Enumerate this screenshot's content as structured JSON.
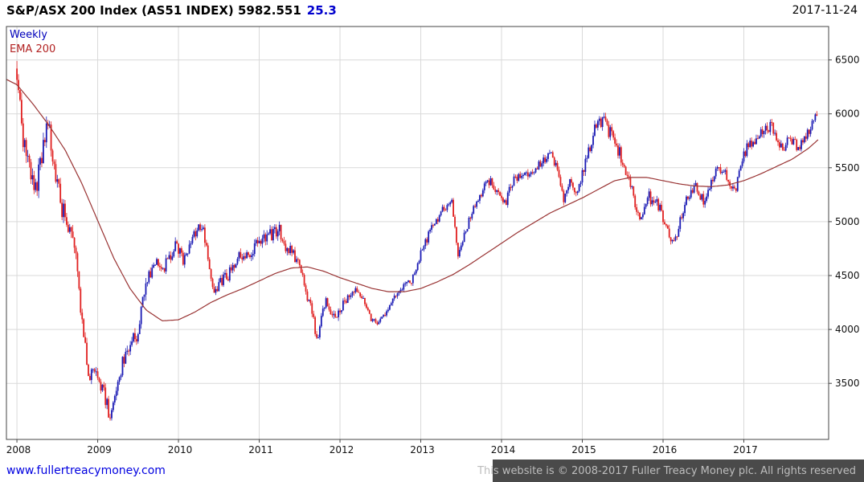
{
  "header": {
    "title": "S&P/ASX 200 Index (AS51 INDEX) 5982.551",
    "change": "25.3",
    "date": "2017-11-24"
  },
  "legend": {
    "timeframe": "Weekly",
    "overlay": "EMA 200"
  },
  "footer": {
    "link": "www.fullertreacymoney.com",
    "copyright": "This website is © 2008-2017 Fuller Treacy Money plc. All rights reserved"
  },
  "chart_data": {
    "type": "candlestick",
    "title": "S&P/ASX 200 Index (AS51 INDEX)",
    "last_price": 5982.551,
    "change": 25.3,
    "interval": "Weekly",
    "overlay": "EMA 200",
    "grid": true,
    "legend_position": "top-left",
    "x_ticks": [
      "2008",
      "2009",
      "2010",
      "2011",
      "2012",
      "2013",
      "2014",
      "2015",
      "2016",
      "2017"
    ],
    "y_ticks": [
      6500,
      6000,
      5500,
      5000,
      4500,
      4000,
      3500
    ],
    "x_range": [
      2007.87,
      2018.05
    ],
    "y_range": [
      2980,
      6810
    ],
    "colors": {
      "up": "#1a1ab4",
      "down": "#e02020",
      "ema": "#993333",
      "grid": "#d9d9d9",
      "axis": "#444444"
    },
    "price_path": [
      [
        2008.0,
        6420
      ],
      [
        2008.04,
        6050
      ],
      [
        2008.08,
        5750
      ],
      [
        2008.15,
        5550
      ],
      [
        2008.22,
        5250
      ],
      [
        2008.3,
        5570
      ],
      [
        2008.38,
        5900
      ],
      [
        2008.46,
        5550
      ],
      [
        2008.55,
        5150
      ],
      [
        2008.63,
        4980
      ],
      [
        2008.7,
        4900
      ],
      [
        2008.76,
        4500
      ],
      [
        2008.8,
        4100
      ],
      [
        2008.85,
        3800
      ],
      [
        2008.9,
        3550
      ],
      [
        2008.96,
        3680
      ],
      [
        2009.02,
        3520
      ],
      [
        2009.08,
        3400
      ],
      [
        2009.16,
        3160
      ],
      [
        2009.24,
        3500
      ],
      [
        2009.33,
        3750
      ],
      [
        2009.42,
        3880
      ],
      [
        2009.5,
        3950
      ],
      [
        2009.58,
        4350
      ],
      [
        2009.66,
        4550
      ],
      [
        2009.74,
        4650
      ],
      [
        2009.82,
        4580
      ],
      [
        2009.9,
        4700
      ],
      [
        2009.98,
        4780
      ],
      [
        2010.06,
        4620
      ],
      [
        2010.14,
        4800
      ],
      [
        2010.24,
        4950
      ],
      [
        2010.3,
        4980
      ],
      [
        2010.38,
        4550
      ],
      [
        2010.46,
        4350
      ],
      [
        2010.54,
        4450
      ],
      [
        2010.62,
        4500
      ],
      [
        2010.72,
        4680
      ],
      [
        2010.8,
        4700
      ],
      [
        2010.88,
        4650
      ],
      [
        2010.96,
        4780
      ],
      [
        2011.05,
        4820
      ],
      [
        2011.15,
        4880
      ],
      [
        2011.25,
        4920
      ],
      [
        2011.33,
        4750
      ],
      [
        2011.42,
        4700
      ],
      [
        2011.5,
        4600
      ],
      [
        2011.58,
        4350
      ],
      [
        2011.65,
        4150
      ],
      [
        2011.72,
        3900
      ],
      [
        2011.78,
        4200
      ],
      [
        2011.84,
        4280
      ],
      [
        2011.9,
        4150
      ],
      [
        2011.96,
        4120
      ],
      [
        2012.04,
        4230
      ],
      [
        2012.12,
        4280
      ],
      [
        2012.22,
        4350
      ],
      [
        2012.3,
        4280
      ],
      [
        2012.4,
        4080
      ],
      [
        2012.46,
        4030
      ],
      [
        2012.54,
        4120
      ],
      [
        2012.62,
        4250
      ],
      [
        2012.72,
        4360
      ],
      [
        2012.8,
        4400
      ],
      [
        2012.9,
        4480
      ],
      [
        2012.98,
        4650
      ],
      [
        2013.06,
        4820
      ],
      [
        2013.14,
        4950
      ],
      [
        2013.24,
        5080
      ],
      [
        2013.32,
        5150
      ],
      [
        2013.38,
        5210
      ],
      [
        2013.46,
        4700
      ],
      [
        2013.54,
        4880
      ],
      [
        2013.62,
        5050
      ],
      [
        2013.72,
        5220
      ],
      [
        2013.82,
        5380
      ],
      [
        2013.9,
        5350
      ],
      [
        2013.98,
        5250
      ],
      [
        2014.06,
        5200
      ],
      [
        2014.14,
        5380
      ],
      [
        2014.24,
        5450
      ],
      [
        2014.34,
        5450
      ],
      [
        2014.44,
        5500
      ],
      [
        2014.54,
        5580
      ],
      [
        2014.62,
        5650
      ],
      [
        2014.7,
        5450
      ],
      [
        2014.76,
        5200
      ],
      [
        2014.84,
        5400
      ],
      [
        2014.9,
        5250
      ],
      [
        2014.98,
        5400
      ],
      [
        2015.06,
        5600
      ],
      [
        2015.14,
        5850
      ],
      [
        2015.24,
        5950
      ],
      [
        2015.3,
        5900
      ],
      [
        2015.38,
        5750
      ],
      [
        2015.46,
        5650
      ],
      [
        2015.52,
        5500
      ],
      [
        2015.6,
        5350
      ],
      [
        2015.68,
        5050
      ],
      [
        2015.74,
        5100
      ],
      [
        2015.8,
        5250
      ],
      [
        2015.86,
        5200
      ],
      [
        2015.94,
        5150
      ],
      [
        2016.02,
        5000
      ],
      [
        2016.08,
        4850
      ],
      [
        2016.13,
        4760
      ],
      [
        2016.2,
        5000
      ],
      [
        2016.3,
        5200
      ],
      [
        2016.4,
        5350
      ],
      [
        2016.46,
        5250
      ],
      [
        2016.52,
        5150
      ],
      [
        2016.6,
        5400
      ],
      [
        2016.68,
        5500
      ],
      [
        2016.76,
        5450
      ],
      [
        2016.84,
        5350
      ],
      [
        2016.9,
        5300
      ],
      [
        2016.98,
        5600
      ],
      [
        2017.06,
        5720
      ],
      [
        2017.16,
        5780
      ],
      [
        2017.26,
        5850
      ],
      [
        2017.34,
        5900
      ],
      [
        2017.42,
        5750
      ],
      [
        2017.5,
        5700
      ],
      [
        2017.58,
        5760
      ],
      [
        2017.66,
        5700
      ],
      [
        2017.74,
        5720
      ],
      [
        2017.8,
        5850
      ],
      [
        2017.86,
        5950
      ],
      [
        2017.9,
        5983
      ]
    ],
    "ema_path": [
      [
        2007.87,
        6320
      ],
      [
        2008.0,
        6270
      ],
      [
        2008.2,
        6090
      ],
      [
        2008.4,
        5890
      ],
      [
        2008.6,
        5660
      ],
      [
        2008.8,
        5360
      ],
      [
        2009.0,
        5010
      ],
      [
        2009.2,
        4660
      ],
      [
        2009.4,
        4380
      ],
      [
        2009.6,
        4180
      ],
      [
        2009.8,
        4080
      ],
      [
        2010.0,
        4090
      ],
      [
        2010.2,
        4160
      ],
      [
        2010.4,
        4250
      ],
      [
        2010.6,
        4320
      ],
      [
        2010.8,
        4380
      ],
      [
        2011.0,
        4450
      ],
      [
        2011.2,
        4520
      ],
      [
        2011.4,
        4570
      ],
      [
        2011.6,
        4580
      ],
      [
        2011.8,
        4540
      ],
      [
        2012.0,
        4480
      ],
      [
        2012.2,
        4430
      ],
      [
        2012.4,
        4380
      ],
      [
        2012.6,
        4350
      ],
      [
        2012.8,
        4350
      ],
      [
        2013.0,
        4380
      ],
      [
        2013.2,
        4440
      ],
      [
        2013.4,
        4510
      ],
      [
        2013.6,
        4600
      ],
      [
        2013.8,
        4700
      ],
      [
        2014.0,
        4800
      ],
      [
        2014.2,
        4900
      ],
      [
        2014.4,
        4990
      ],
      [
        2014.6,
        5080
      ],
      [
        2014.8,
        5150
      ],
      [
        2015.0,
        5220
      ],
      [
        2015.2,
        5300
      ],
      [
        2015.4,
        5380
      ],
      [
        2015.6,
        5410
      ],
      [
        2015.8,
        5410
      ],
      [
        2016.0,
        5380
      ],
      [
        2016.2,
        5350
      ],
      [
        2016.4,
        5330
      ],
      [
        2016.6,
        5325
      ],
      [
        2016.8,
        5340
      ],
      [
        2017.0,
        5380
      ],
      [
        2017.2,
        5440
      ],
      [
        2017.4,
        5510
      ],
      [
        2017.6,
        5580
      ],
      [
        2017.8,
        5680
      ],
      [
        2017.92,
        5760
      ]
    ]
  }
}
